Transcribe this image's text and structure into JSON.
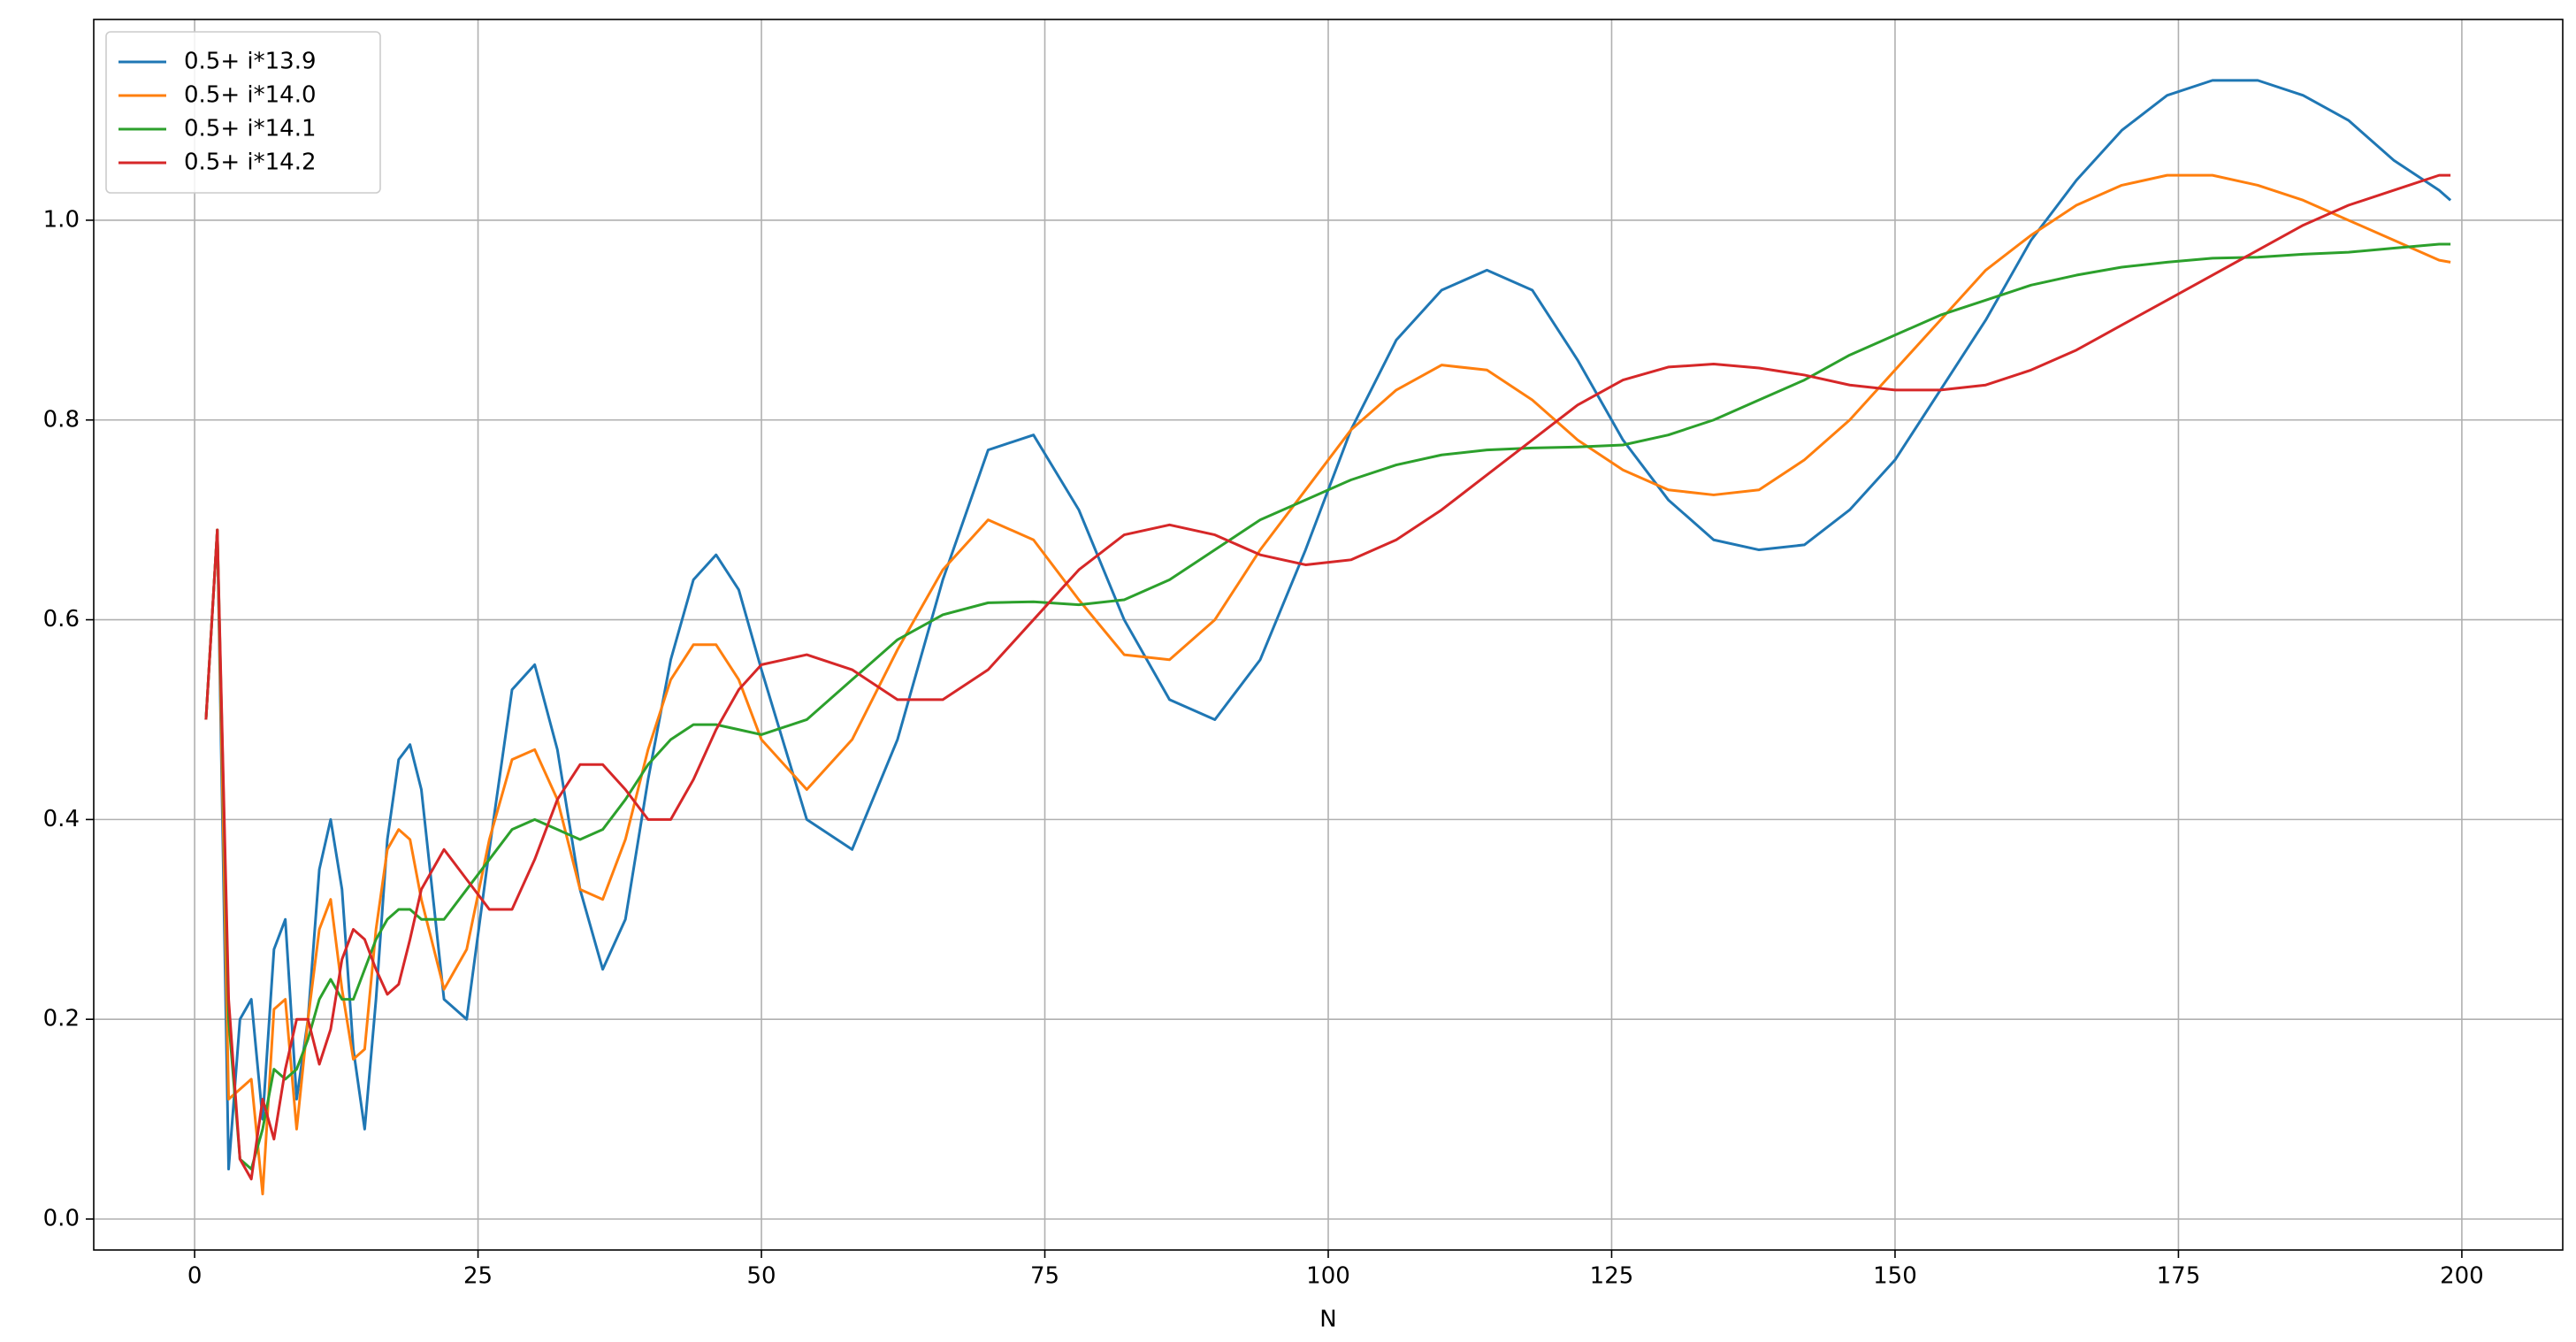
{
  "chart_data": {
    "type": "line",
    "xlabel": "N",
    "x": [
      1,
      2,
      3,
      4,
      5,
      6,
      7,
      8,
      9,
      10,
      11,
      12,
      13,
      14,
      15,
      16,
      17,
      18,
      19,
      20,
      22,
      24,
      26,
      28,
      30,
      32,
      34,
      36,
      38,
      40,
      42,
      44,
      46,
      48,
      50,
      54,
      58,
      62,
      66,
      70,
      74,
      78,
      82,
      86,
      90,
      94,
      98,
      102,
      106,
      110,
      114,
      118,
      122,
      126,
      130,
      134,
      138,
      142,
      146,
      150,
      154,
      158,
      162,
      166,
      170,
      174,
      178,
      182,
      186,
      190,
      194,
      198,
      199
    ],
    "series": [
      {
        "name": "0.5+ i*13.9",
        "color": "#1f77b4",
        "values": [
          0.5,
          0.69,
          0.05,
          0.2,
          0.22,
          0.1,
          0.27,
          0.3,
          0.12,
          0.2,
          0.35,
          0.4,
          0.33,
          0.17,
          0.09,
          0.22,
          0.38,
          0.46,
          0.475,
          0.43,
          0.22,
          0.2,
          0.37,
          0.53,
          0.555,
          0.47,
          0.33,
          0.25,
          0.3,
          0.44,
          0.56,
          0.64,
          0.665,
          0.63,
          0.55,
          0.4,
          0.37,
          0.48,
          0.64,
          0.77,
          0.785,
          0.71,
          0.6,
          0.52,
          0.5,
          0.56,
          0.67,
          0.79,
          0.88,
          0.93,
          0.95,
          0.93,
          0.86,
          0.78,
          0.72,
          0.68,
          0.67,
          0.675,
          0.71,
          0.76,
          0.83,
          0.9,
          0.98,
          1.04,
          1.09,
          1.125,
          1.14,
          1.14,
          1.125,
          1.1,
          1.06,
          1.03,
          1.02
        ]
      },
      {
        "name": "0.5+ i*14.0",
        "color": "#ff7f0e",
        "values": [
          0.5,
          0.69,
          0.12,
          0.13,
          0.14,
          0.025,
          0.21,
          0.22,
          0.09,
          0.2,
          0.29,
          0.32,
          0.23,
          0.16,
          0.17,
          0.29,
          0.37,
          0.39,
          0.38,
          0.32,
          0.23,
          0.27,
          0.38,
          0.46,
          0.47,
          0.42,
          0.33,
          0.32,
          0.38,
          0.47,
          0.54,
          0.575,
          0.575,
          0.54,
          0.48,
          0.43,
          0.48,
          0.57,
          0.65,
          0.7,
          0.68,
          0.62,
          0.565,
          0.56,
          0.6,
          0.67,
          0.73,
          0.79,
          0.83,
          0.855,
          0.85,
          0.82,
          0.78,
          0.75,
          0.73,
          0.725,
          0.73,
          0.76,
          0.8,
          0.85,
          0.9,
          0.95,
          0.985,
          1.015,
          1.035,
          1.045,
          1.045,
          1.035,
          1.02,
          1.0,
          0.98,
          0.96,
          0.958
        ]
      },
      {
        "name": "0.5+ i*14.1",
        "color": "#2ca02c",
        "values": [
          0.5,
          0.69,
          0.2,
          0.06,
          0.05,
          0.09,
          0.15,
          0.14,
          0.15,
          0.18,
          0.22,
          0.24,
          0.22,
          0.22,
          0.25,
          0.28,
          0.3,
          0.31,
          0.31,
          0.3,
          0.3,
          0.33,
          0.36,
          0.39,
          0.4,
          0.39,
          0.38,
          0.39,
          0.42,
          0.455,
          0.48,
          0.495,
          0.495,
          0.49,
          0.485,
          0.5,
          0.54,
          0.58,
          0.605,
          0.617,
          0.618,
          0.615,
          0.62,
          0.64,
          0.67,
          0.7,
          0.72,
          0.74,
          0.755,
          0.765,
          0.77,
          0.772,
          0.773,
          0.775,
          0.785,
          0.8,
          0.82,
          0.84,
          0.865,
          0.885,
          0.905,
          0.92,
          0.935,
          0.945,
          0.953,
          0.958,
          0.962,
          0.963,
          0.966,
          0.968,
          0.972,
          0.976,
          0.976
        ]
      },
      {
        "name": "0.5+ i*14.2",
        "color": "#d62728",
        "values": [
          0.5,
          0.69,
          0.22,
          0.06,
          0.04,
          0.12,
          0.08,
          0.15,
          0.2,
          0.2,
          0.155,
          0.19,
          0.26,
          0.29,
          0.28,
          0.25,
          0.225,
          0.235,
          0.28,
          0.33,
          0.37,
          0.34,
          0.31,
          0.31,
          0.36,
          0.42,
          0.455,
          0.455,
          0.43,
          0.4,
          0.4,
          0.44,
          0.49,
          0.53,
          0.555,
          0.565,
          0.55,
          0.52,
          0.52,
          0.55,
          0.6,
          0.65,
          0.685,
          0.695,
          0.685,
          0.665,
          0.655,
          0.66,
          0.68,
          0.71,
          0.745,
          0.78,
          0.815,
          0.84,
          0.853,
          0.856,
          0.852,
          0.845,
          0.835,
          0.83,
          0.83,
          0.835,
          0.85,
          0.87,
          0.895,
          0.92,
          0.945,
          0.97,
          0.995,
          1.015,
          1.03,
          1.045,
          1.045
        ]
      }
    ],
    "xlim": [
      -8.9,
      208.9
    ],
    "xticks": [
      0,
      25,
      50,
      75,
      100,
      125,
      150,
      175,
      200
    ],
    "ylim": [
      -0.031,
      1.201
    ],
    "yticks": [
      {
        "value": 0,
        "label": "0.0"
      },
      {
        "value": 0.2,
        "label": "0.2"
      },
      {
        "value": 0.4,
        "label": "0.4"
      },
      {
        "value": 0.6,
        "label": "0.6"
      },
      {
        "value": 0.8,
        "label": "0.8"
      },
      {
        "value": 1.0,
        "label": "1.0"
      }
    ],
    "grid": true,
    "legend": "upper left"
  }
}
